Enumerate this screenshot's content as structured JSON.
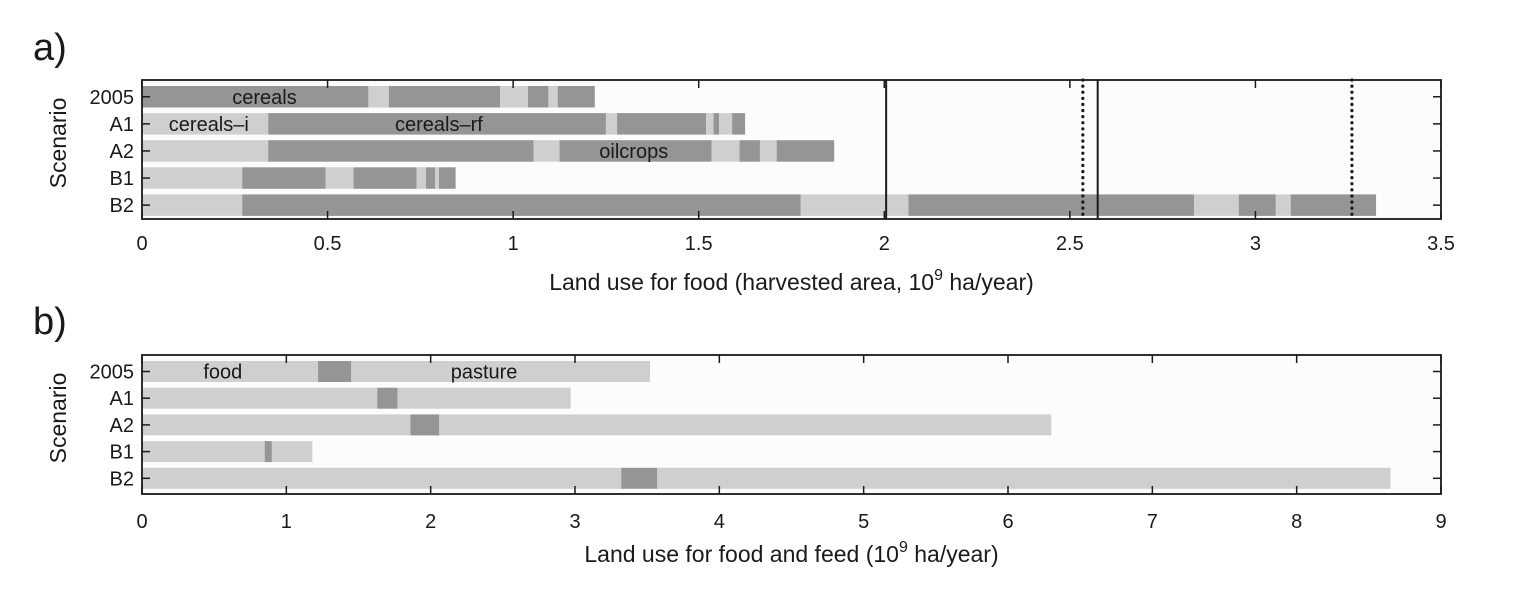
{
  "palette": {
    "dark": "#959595",
    "light": "#cfcfcf",
    "frame": "#1a1a1a",
    "bg": "#fcfcfc"
  },
  "chart_data": [
    {
      "panel": "a)",
      "type": "bar",
      "orientation": "horizontal",
      "stacked": true,
      "xlabel_main": "Land use for food (harvested area, 10",
      "xlabel_sup": "9",
      "xlabel_tail": " ha/year)",
      "ylabel": "Scenario",
      "xlim": [
        0,
        3.5
      ],
      "xticks": [
        0,
        0.5,
        1,
        1.5,
        2,
        2.5,
        3,
        3.5
      ],
      "xtick_labels": [
        "0",
        "0.5",
        "1",
        "1.5",
        "2",
        "2.5",
        "3",
        "3.5"
      ],
      "categories": [
        "2005",
        "A1",
        "A2",
        "B1",
        "B2"
      ],
      "bars": [
        {
          "category": "2005",
          "segments": [
            {
              "start": 0,
              "end": 0.61,
              "shade": "dark"
            },
            {
              "start": 0.61,
              "end": 0.665,
              "shade": "light"
            },
            {
              "start": 0.665,
              "end": 0.965,
              "shade": "dark"
            },
            {
              "start": 0.965,
              "end": 1.04,
              "shade": "light"
            },
            {
              "start": 1.04,
              "end": 1.095,
              "shade": "dark"
            },
            {
              "start": 1.095,
              "end": 1.12,
              "shade": "light"
            },
            {
              "start": 1.12,
              "end": 1.22,
              "shade": "dark"
            }
          ]
        },
        {
          "category": "A1",
          "segments": [
            {
              "start": 0,
              "end": 0.34,
              "shade": "light"
            },
            {
              "start": 0.34,
              "end": 1.25,
              "shade": "dark"
            },
            {
              "start": 1.25,
              "end": 1.28,
              "shade": "light"
            },
            {
              "start": 1.28,
              "end": 1.52,
              "shade": "dark"
            },
            {
              "start": 1.52,
              "end": 1.54,
              "shade": "light"
            },
            {
              "start": 1.54,
              "end": 1.555,
              "shade": "dark"
            },
            {
              "start": 1.555,
              "end": 1.59,
              "shade": "light"
            },
            {
              "start": 1.59,
              "end": 1.625,
              "shade": "dark"
            }
          ]
        },
        {
          "category": "A2",
          "segments": [
            {
              "start": 0,
              "end": 0.34,
              "shade": "light"
            },
            {
              "start": 0.34,
              "end": 1.055,
              "shade": "dark"
            },
            {
              "start": 1.055,
              "end": 1.125,
              "shade": "light"
            },
            {
              "start": 1.125,
              "end": 1.535,
              "shade": "dark"
            },
            {
              "start": 1.535,
              "end": 1.61,
              "shade": "light"
            },
            {
              "start": 1.61,
              "end": 1.665,
              "shade": "dark"
            },
            {
              "start": 1.665,
              "end": 1.71,
              "shade": "light"
            },
            {
              "start": 1.71,
              "end": 1.865,
              "shade": "dark"
            }
          ]
        },
        {
          "category": "B1",
          "segments": [
            {
              "start": 0,
              "end": 0.27,
              "shade": "light"
            },
            {
              "start": 0.27,
              "end": 0.495,
              "shade": "dark"
            },
            {
              "start": 0.495,
              "end": 0.57,
              "shade": "light"
            },
            {
              "start": 0.57,
              "end": 0.74,
              "shade": "dark"
            },
            {
              "start": 0.74,
              "end": 0.765,
              "shade": "light"
            },
            {
              "start": 0.765,
              "end": 0.79,
              "shade": "dark"
            },
            {
              "start": 0.79,
              "end": 0.8,
              "shade": "light"
            },
            {
              "start": 0.8,
              "end": 0.845,
              "shade": "dark"
            }
          ]
        },
        {
          "category": "B2",
          "segments": [
            {
              "start": 0,
              "end": 0.27,
              "shade": "light"
            },
            {
              "start": 0.27,
              "end": 1.775,
              "shade": "dark"
            },
            {
              "start": 1.775,
              "end": 2.065,
              "shade": "light"
            },
            {
              "start": 2.065,
              "end": 2.835,
              "shade": "dark"
            },
            {
              "start": 2.835,
              "end": 2.955,
              "shade": "light"
            },
            {
              "start": 2.955,
              "end": 3.055,
              "shade": "dark"
            },
            {
              "start": 3.055,
              "end": 3.095,
              "shade": "light"
            },
            {
              "start": 3.095,
              "end": 3.325,
              "shade": "dark"
            }
          ]
        }
      ],
      "annotations": [
        {
          "text": "cereals",
          "x": 0.33,
          "category": "2005"
        },
        {
          "text": "cereals–i",
          "x": 0.18,
          "category": "A1"
        },
        {
          "text": "cereals–rf",
          "x": 0.8,
          "category": "A1"
        },
        {
          "text": "oilcrops",
          "x": 1.325,
          "category": "A2"
        }
      ],
      "reference_lines": [
        {
          "x": 2.005,
          "style": "solid"
        },
        {
          "x": 2.575,
          "style": "solid"
        },
        {
          "x": 2.535,
          "style": "dotted"
        },
        {
          "x": 3.26,
          "style": "dotted"
        }
      ]
    },
    {
      "panel": "b)",
      "type": "bar",
      "orientation": "horizontal",
      "stacked": true,
      "xlabel_main": "Land use for food and feed (10",
      "xlabel_sup": "9",
      "xlabel_tail": " ha/year)",
      "ylabel": "Scenario",
      "xlim": [
        0,
        9
      ],
      "xticks": [
        0,
        1,
        2,
        3,
        4,
        5,
        6,
        7,
        8,
        9
      ],
      "xtick_labels": [
        "0",
        "1",
        "2",
        "3",
        "4",
        "5",
        "6",
        "7",
        "8",
        "9"
      ],
      "categories": [
        "2005",
        "A1",
        "A2",
        "B1",
        "B2"
      ],
      "bars": [
        {
          "category": "2005",
          "segments": [
            {
              "start": 0,
              "end": 1.22,
              "shade": "light"
            },
            {
              "start": 1.22,
              "end": 1.45,
              "shade": "dark"
            },
            {
              "start": 1.45,
              "end": 3.52,
              "shade": "light"
            }
          ]
        },
        {
          "category": "A1",
          "segments": [
            {
              "start": 0,
              "end": 1.63,
              "shade": "light"
            },
            {
              "start": 1.63,
              "end": 1.77,
              "shade": "dark"
            },
            {
              "start": 1.77,
              "end": 2.97,
              "shade": "light"
            }
          ]
        },
        {
          "category": "A2",
          "segments": [
            {
              "start": 0,
              "end": 1.86,
              "shade": "light"
            },
            {
              "start": 1.86,
              "end": 2.06,
              "shade": "dark"
            },
            {
              "start": 2.06,
              "end": 6.3,
              "shade": "light"
            }
          ]
        },
        {
          "category": "B1",
          "segments": [
            {
              "start": 0,
              "end": 0.85,
              "shade": "light"
            },
            {
              "start": 0.85,
              "end": 0.9,
              "shade": "dark"
            },
            {
              "start": 0.9,
              "end": 1.18,
              "shade": "light"
            }
          ]
        },
        {
          "category": "B2",
          "segments": [
            {
              "start": 0,
              "end": 3.32,
              "shade": "light"
            },
            {
              "start": 3.32,
              "end": 3.57,
              "shade": "dark"
            },
            {
              "start": 3.57,
              "end": 8.65,
              "shade": "light"
            }
          ]
        }
      ],
      "annotations": [
        {
          "text": "food",
          "x": 0.56,
          "category": "2005"
        },
        {
          "text": "pasture",
          "x": 2.37,
          "category": "2005"
        }
      ],
      "reference_lines": []
    }
  ]
}
